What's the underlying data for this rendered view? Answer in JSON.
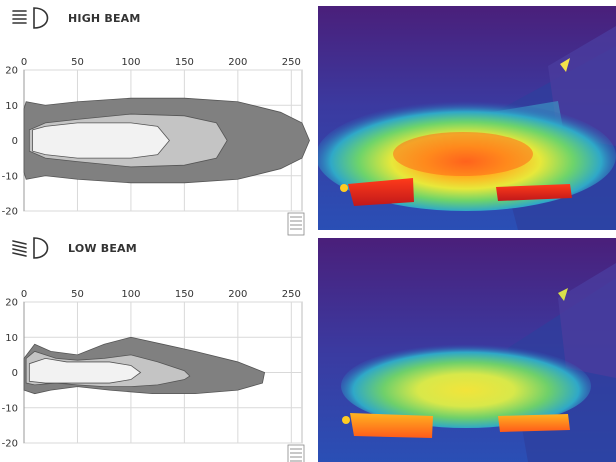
{
  "panels": [
    {
      "label": "HIGH BEAM",
      "icon": "high-beam-icon"
    },
    {
      "label": "LOW BEAM",
      "icon": "low-beam-icon"
    }
  ],
  "chart_data": [
    {
      "type": "area",
      "title": "HIGH BEAM",
      "xlim": [
        0,
        260
      ],
      "ylim": [
        -20,
        20
      ],
      "xticks": [
        0,
        50,
        100,
        150,
        200,
        250
      ],
      "yticks": [
        20,
        10,
        0,
        -10,
        -20
      ],
      "grid": true,
      "colors": [
        "#808080",
        "#c4c4c4",
        "#f2f2f2"
      ],
      "series": [
        {
          "x": [
            0,
            2,
            20,
            50,
            100,
            150,
            200,
            240,
            260,
            267,
            260,
            240,
            200,
            150,
            100,
            50,
            20,
            2,
            0
          ],
          "upper": [
            9,
            11,
            10,
            11,
            12,
            12,
            11,
            8,
            5,
            0,
            -5,
            -8,
            -11,
            -12,
            -12,
            -11,
            -10,
            -11,
            -9
          ]
        },
        {
          "x": [
            5,
            20,
            50,
            100,
            150,
            180,
            190,
            180,
            150,
            100,
            50,
            20,
            5
          ],
          "upper": [
            3,
            5,
            6,
            7.5,
            7,
            5,
            0,
            -5,
            -7,
            -7.5,
            -6,
            -5,
            -3
          ]
        },
        {
          "x": [
            8,
            20,
            50,
            100,
            125,
            136,
            125,
            100,
            50,
            20,
            8
          ],
          "upper": [
            3,
            4,
            5,
            5,
            4,
            0,
            -4,
            -5,
            -5,
            -4,
            -3
          ]
        }
      ]
    },
    {
      "type": "area",
      "title": "LOW BEAM",
      "xlim": [
        0,
        260
      ],
      "ylim": [
        -20,
        20
      ],
      "xticks": [
        0,
        50,
        100,
        150,
        200,
        250
      ],
      "yticks": [
        20,
        10,
        0,
        -10,
        -20
      ],
      "grid": true,
      "colors": [
        "#808080",
        "#c4c4c4",
        "#f2f2f2"
      ],
      "series": [
        {
          "x": [
            0,
            10,
            25,
            50,
            75,
            100,
            130,
            160,
            200,
            225,
            223,
            200,
            160,
            120,
            80,
            50,
            25,
            10,
            0
          ],
          "upper": [
            4,
            8,
            6,
            5,
            8,
            10,
            8,
            6,
            3,
            0,
            -3,
            -5,
            -6,
            -6,
            -5,
            -4,
            -5,
            -6,
            -5
          ]
        },
        {
          "x": [
            2,
            10,
            30,
            50,
            75,
            100,
            125,
            150,
            155,
            150,
            125,
            100,
            75,
            50,
            30,
            10,
            2
          ],
          "upper": [
            4,
            6,
            4,
            3.5,
            4,
            5,
            3,
            0.5,
            -1,
            -2,
            -3.5,
            -4,
            -4,
            -3.5,
            -3,
            -3.5,
            -3
          ]
        },
        {
          "x": [
            5,
            20,
            40,
            60,
            80,
            100,
            109,
            100,
            80,
            60,
            40,
            20,
            5
          ],
          "upper": [
            2.5,
            4,
            3,
            3,
            3,
            2,
            0,
            -2,
            -3,
            -3,
            -3,
            -3,
            -2.5
          ]
        }
      ]
    }
  ]
}
